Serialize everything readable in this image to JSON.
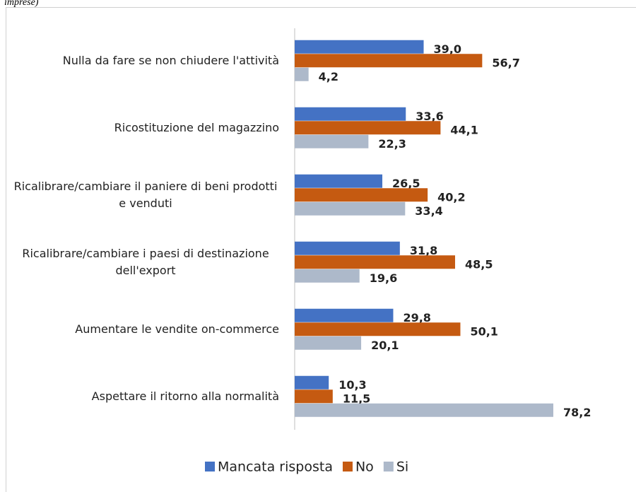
{
  "chart_data": {
    "type": "bar",
    "orientation": "horizontal",
    "caption": "imprese)",
    "categories": [
      "Nulla da fare se non chiudere l'attività",
      "Ricostituzione del magazzino",
      "Ricalibrare/cambiare il paniere di beni prodotti e venduti",
      "Ricalibrare/cambiare i paesi di destinazione dell'export",
      "Aumentare le vendite on-commerce",
      "Aspettare il ritorno alla normalità"
    ],
    "series": [
      {
        "name": "Mancata risposta",
        "color": "#4472c4",
        "values": [
          39.0,
          33.6,
          26.5,
          31.8,
          29.8,
          10.3
        ],
        "value_labels": [
          "39,0",
          "33,6",
          "26,5",
          "31,8",
          "29,8",
          "10,3"
        ]
      },
      {
        "name": "No",
        "color": "#c55a11",
        "values": [
          56.7,
          44.1,
          40.2,
          48.5,
          50.1,
          11.5
        ],
        "value_labels": [
          "56,7",
          "44,1",
          "40,2",
          "48,5",
          "50,1",
          "11,5"
        ]
      },
      {
        "name": "Si",
        "color": "#adb9ca",
        "values": [
          4.2,
          22.3,
          33.4,
          19.6,
          20.1,
          78.2
        ],
        "value_labels": [
          "4,2",
          "22,3",
          "33,4",
          "19,6",
          "20,1",
          "78,2"
        ]
      }
    ],
    "xlim": [
      0,
      100
    ],
    "legend": "bottom"
  }
}
